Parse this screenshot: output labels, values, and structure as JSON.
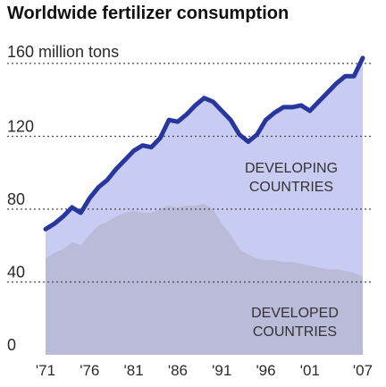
{
  "chart_data": {
    "type": "area",
    "title": "Worldwide fertilizer consumption",
    "unit_label": "160 million tons",
    "ylim": [
      0,
      165
    ],
    "xlim": [
      1971,
      2007
    ],
    "y_ticks": [
      0,
      40,
      80,
      120,
      160
    ],
    "y_tick_labels": [
      "0",
      "40",
      "80",
      "120",
      ""
    ],
    "x_ticks": [
      1971,
      1976,
      1981,
      1986,
      1991,
      1996,
      2001,
      2007
    ],
    "x_tick_labels": [
      "'71",
      "'76",
      "'81",
      "'86",
      "'91",
      "'96",
      "'01",
      "'07"
    ],
    "grid": "dotted horizontal at 40, 80, 120, 160",
    "area_labels": {
      "developing": [
        "DEVELOPING",
        "COUNTRIES"
      ],
      "developed": [
        "DEVELOPED",
        "COUNTRIES"
      ]
    },
    "series": [
      {
        "key": "developed",
        "x": [
          1971,
          1972,
          1973,
          1974,
          1975,
          1976,
          1977,
          1978,
          1979,
          1980,
          1981,
          1982,
          1983,
          1984,
          1985,
          1986,
          1987,
          1988,
          1989,
          1990,
          1991,
          1992,
          1993,
          1994,
          1995,
          1996,
          1997,
          1998,
          1999,
          2000,
          2001,
          2002,
          2003,
          2004,
          2005,
          2006,
          2007
        ],
        "values": [
          53,
          56,
          58,
          62,
          60,
          66,
          71,
          73,
          76,
          78,
          79,
          78,
          78,
          80,
          82,
          81,
          82,
          82,
          83,
          80,
          72,
          66,
          58,
          55,
          53,
          52,
          52,
          51,
          51,
          50,
          49,
          48,
          47,
          47,
          46,
          45,
          43
        ]
      },
      {
        "key": "total",
        "x": [
          1971,
          1972,
          1973,
          1974,
          1975,
          1976,
          1977,
          1978,
          1979,
          1980,
          1981,
          1982,
          1983,
          1984,
          1985,
          1986,
          1987,
          1988,
          1989,
          1990,
          1991,
          1992,
          1993,
          1994,
          1995,
          1996,
          1997,
          1998,
          1999,
          2000,
          2001,
          2002,
          2003,
          2004,
          2005,
          2006,
          2007
        ],
        "values": [
          69,
          72,
          76,
          81,
          78,
          86,
          92,
          96,
          102,
          107,
          112,
          115,
          114,
          119,
          129,
          128,
          132,
          137,
          141,
          139,
          134,
          129,
          121,
          117,
          121,
          129,
          133,
          136,
          136,
          137,
          134,
          139,
          144,
          149,
          153,
          153,
          163
        ]
      }
    ],
    "colors": {
      "developing_fill": "#c9ccf2",
      "developed_fill": "#b9bbd9",
      "total_line": "#28379e",
      "grid": "#4a4a4a"
    }
  }
}
